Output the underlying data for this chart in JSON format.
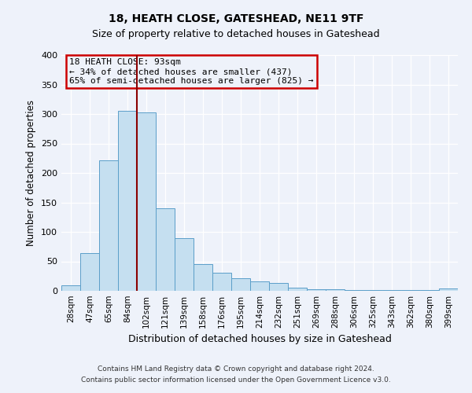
{
  "title1": "18, HEATH CLOSE, GATESHEAD, NE11 9TF",
  "title2": "Size of property relative to detached houses in Gateshead",
  "xlabel": "Distribution of detached houses by size in Gateshead",
  "ylabel": "Number of detached properties",
  "categories": [
    "28sqm",
    "47sqm",
    "65sqm",
    "84sqm",
    "102sqm",
    "121sqm",
    "139sqm",
    "158sqm",
    "176sqm",
    "195sqm",
    "214sqm",
    "232sqm",
    "251sqm",
    "269sqm",
    "288sqm",
    "306sqm",
    "325sqm",
    "343sqm",
    "362sqm",
    "380sqm",
    "399sqm"
  ],
  "values": [
    10,
    64,
    222,
    306,
    303,
    140,
    90,
    46,
    31,
    22,
    16,
    13,
    5,
    3,
    3,
    2,
    2,
    2,
    2,
    2,
    4
  ],
  "bar_color": "#c5dff0",
  "bar_edge_color": "#5b9ec9",
  "background_color": "#eef2fa",
  "ylim": [
    0,
    400
  ],
  "yticks": [
    0,
    50,
    100,
    150,
    200,
    250,
    300,
    350,
    400
  ],
  "vline_x_index": 3.5,
  "vline_color": "#8b0000",
  "annotation_title": "18 HEATH CLOSE: 93sqm",
  "annotation_line1": "← 34% of detached houses are smaller (437)",
  "annotation_line2": "65% of semi-detached houses are larger (825) →",
  "annotation_box_color": "#cc0000",
  "footer_line1": "Contains HM Land Registry data © Crown copyright and database right 2024.",
  "footer_line2": "Contains public sector information licensed under the Open Government Licence v3.0."
}
